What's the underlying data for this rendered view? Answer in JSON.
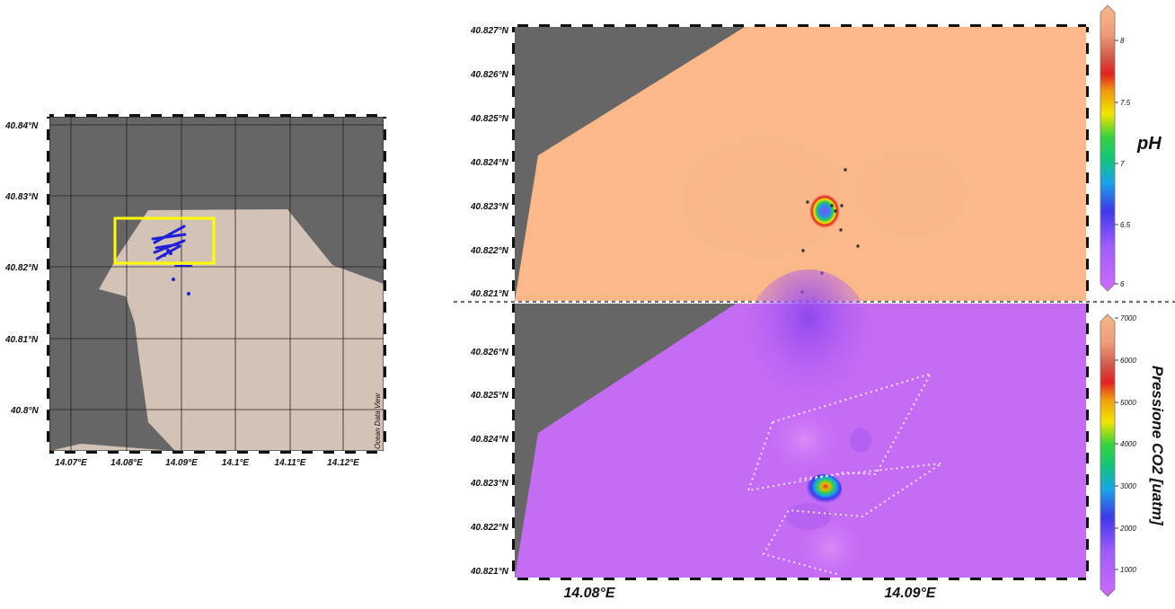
{
  "overview_map": {
    "lat_ticks": [
      "40.84°N",
      "40.83°N",
      "40.82°N",
      "40.81°N",
      "40.8°N"
    ],
    "lon_ticks": [
      "14.07°E",
      "14.08°E",
      "14.09°E",
      "14.1°E",
      "14.11°E",
      "14.12°E"
    ],
    "credit": "Ocean Data View",
    "land_color": "#666666",
    "sea_color": "#d3c2b6",
    "track_color": "#1f1fd6",
    "highlight_box_color": "#ffff00"
  },
  "ph_panel": {
    "lat_ticks": [
      "40.827°N",
      "40.826°N",
      "40.825°N",
      "40.824°N",
      "40.823°N",
      "40.822°N",
      "40.821°N"
    ],
    "colorbar_title": "pH",
    "colorbar_ticks": [
      "8",
      "7.5",
      "7",
      "6.5",
      "6"
    ],
    "background_color": "#fbb989"
  },
  "co2_panel": {
    "lat_ticks": [
      "40.826°N",
      "40.825°N",
      "40.824°N",
      "40.823°N",
      "40.822°N",
      "40.821°N"
    ],
    "lon_ticks": [
      "14.08°E",
      "14.09°E"
    ],
    "colorbar_title": "Pressione CO2 [uatm]",
    "colorbar_ticks": [
      "7000",
      "6000",
      "5000",
      "4000",
      "3000",
      "2000",
      "1000"
    ],
    "background_color": "#c56cf5"
  }
}
